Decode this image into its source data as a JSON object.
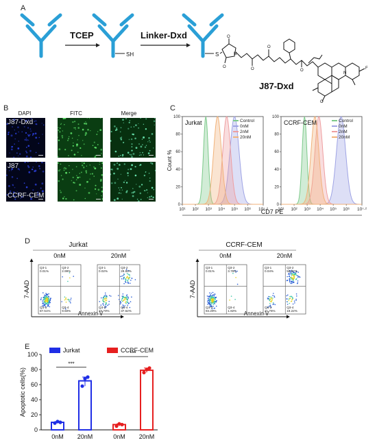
{
  "panelA": {
    "label": "A",
    "step1": "TCEP",
    "step2": "Linker-Dxd",
    "sh": "SH",
    "s": "S",
    "product": "J87-Dxd",
    "atomO": "O",
    "atomN": "N",
    "atomF": "F"
  },
  "panelB": {
    "label": "B",
    "columns": [
      "DAPI",
      "FITC",
      "Merge"
    ],
    "row1_label": "J87-Dxd",
    "row2_label": "J87",
    "row2_sublabel": "CCRF-CEM"
  },
  "panelC": {
    "label": "C",
    "xlabel": "CD7 PE",
    "ylabel": "Count %",
    "charts": [
      {
        "title": "Jurkat",
        "legend": [
          "Control",
          "0nM",
          "2nM",
          "20nM"
        ],
        "peaks_log10": [
          2.8,
          5.0,
          4.4,
          3.7
        ]
      },
      {
        "title": "CCRF-CEM",
        "legend": [
          "Control",
          "0nM",
          "2nM",
          "20nM"
        ],
        "peaks_log10": [
          2.8,
          5.6,
          3.9,
          3.6
        ]
      }
    ],
    "yticks": [
      "0",
      "20",
      "40",
      "60",
      "80",
      "100"
    ],
    "xticks": [
      "10¹",
      "10²",
      "10³",
      "10⁴",
      "10⁵",
      "10⁶",
      "10⁷·²"
    ],
    "colors": [
      "#7cc98a",
      "#9ea3e4",
      "#ee9ea0",
      "#f1b27a"
    ]
  },
  "panelD": {
    "label": "D",
    "groups": [
      {
        "title": "Jurkat",
        "plots": [
          {
            "cond": "0nM",
            "q1": "Q3-1",
            "q1v": "0.01%",
            "q2": "Q3-2",
            "q2v": "2.99%",
            "q3": "Q3-3",
            "q3v": "87.51%",
            "q4": "Q3-4",
            "q4v": "9.50%"
          },
          {
            "cond": "20nM",
            "q1": "Q3-1",
            "q1v": "0.02%",
            "q2": "Q3-2",
            "q2v": "28.65%",
            "q3": "Q3-3",
            "q3v": "33.70%",
            "q4": "Q3-4",
            "q4v": "37.62%"
          }
        ]
      },
      {
        "title": "CCRF-CEM",
        "plots": [
          {
            "cond": "0nM",
            "q1": "Q3-1",
            "q1v": "0.01%",
            "q2": "Q3-2",
            "q2v": "3.78%",
            "q3": "Q3-3",
            "q3v": "94.29%",
            "q4": "Q3-4",
            "q4v": "1.92%"
          },
          {
            "cond": "20nM",
            "q1": "Q3-1",
            "q1v": "0.04%",
            "q2": "Q3-2",
            "q2v": "58.97%",
            "q3": "Q3-3",
            "q3v": "21.76%",
            "q4": "Q3-4",
            "q4v": "19.22%"
          }
        ]
      }
    ],
    "ylabel": "7-AAD",
    "xlabel": "Annexin V"
  },
  "panelE": {
    "label": "E",
    "ylabel": "Apoptotic cells(%)",
    "yticks": [
      "0",
      "20",
      "40",
      "60",
      "80",
      "100"
    ],
    "categories": [
      "0nM",
      "20nM",
      "0nM",
      "20nM"
    ],
    "legend": [
      {
        "name": "Jurkat",
        "color": "#1f2ee6"
      },
      {
        "name": "CCRF-CEM",
        "color": "#e61f1f"
      }
    ],
    "significance": [
      "***",
      "***"
    ],
    "chart_data": {
      "type": "bar",
      "categories": [
        "0nM",
        "20nM",
        "0nM",
        "20nM"
      ],
      "series": [
        {
          "name": "Jurkat",
          "values": [
            10,
            65,
            null,
            null
          ]
        },
        {
          "name": "CCRF-CEM",
          "values": [
            null,
            null,
            7,
            79
          ]
        }
      ],
      "points": [
        [
          9,
          11,
          10
        ],
        [
          58,
          68,
          70
        ],
        [
          5,
          8,
          7
        ],
        [
          76,
          80,
          82
        ]
      ],
      "ylabel": "Apoptotic cells(%)",
      "ylim": [
        0,
        100
      ]
    }
  }
}
